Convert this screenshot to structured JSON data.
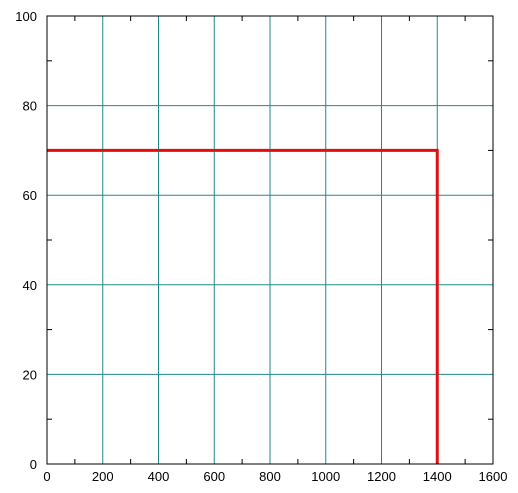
{
  "chart_data": {
    "type": "line",
    "title": "",
    "xlabel": "",
    "ylabel": "",
    "xlim": [
      0,
      1600
    ],
    "ylim": [
      0,
      100
    ],
    "x_ticks": [
      0,
      200,
      400,
      600,
      800,
      1000,
      1200,
      1400,
      1600
    ],
    "y_ticks": [
      0,
      20,
      40,
      60,
      80,
      100
    ],
    "x_tick_labels": [
      "0",
      "200",
      "400",
      "600",
      "800",
      "1000",
      "1200",
      "1400",
      "1600"
    ],
    "y_tick_labels": [
      "0",
      "20",
      "40",
      "60",
      "80",
      "100"
    ],
    "grid": true,
    "legend": "none",
    "series": [
      {
        "x": [
          0,
          1400,
          1400
        ],
        "y": [
          70,
          70,
          0
        ]
      }
    ]
  },
  "colors": {
    "series_line": "#e01010",
    "grid": "#1f8a8a",
    "axes": "#000000"
  }
}
